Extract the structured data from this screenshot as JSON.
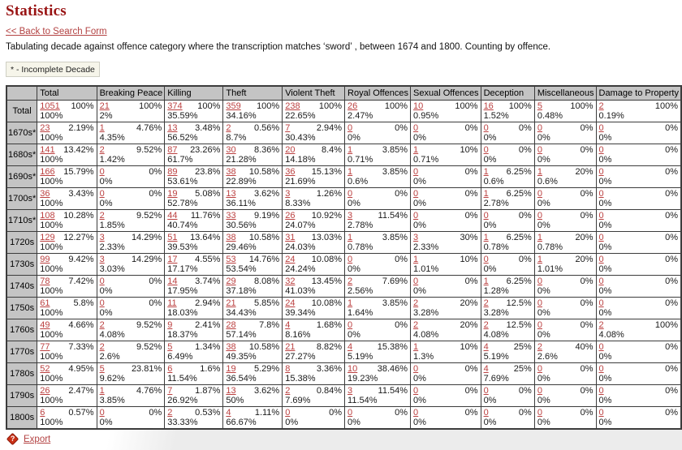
{
  "header": {
    "title": "Statistics",
    "back_link": "<< Back to Search Form",
    "description": "Tabulating decade against offence category where the transcription matches ‘sword’ , between 1674 and 1800. Counting by offence.",
    "incomplete_note": "* - Incomplete Decade"
  },
  "footer": {
    "export_label": "Export",
    "help_icon_glyph": "?"
  },
  "colors": {
    "title_red": "#991414",
    "link_red": "#b34242",
    "count_link_red": "#bb4040",
    "header_gray": "#c4c4c4",
    "note_bg": "#f6f5ea",
    "export_icon_red": "#c93016"
  },
  "table": {
    "cell_structure": [
      "count_link",
      "row_percent",
      "column_percent"
    ],
    "columns": [
      "Total",
      "Breaking Peace",
      "Killing",
      "Theft",
      "Violent Theft",
      "Royal Offences",
      "Sexual Offences",
      "Deception",
      "Miscellaneous",
      "Damage to Property"
    ],
    "rows": [
      {
        "label": "Total",
        "cells": [
          [
            "1051",
            "100%",
            "100%"
          ],
          [
            "21",
            "100%",
            "2%"
          ],
          [
            "374",
            "100%",
            "35.59%"
          ],
          [
            "359",
            "100%",
            "34.16%"
          ],
          [
            "238",
            "100%",
            "22.65%"
          ],
          [
            "26",
            "100%",
            "2.47%"
          ],
          [
            "10",
            "100%",
            "0.95%"
          ],
          [
            "16",
            "100%",
            "1.52%"
          ],
          [
            "5",
            "100%",
            "0.48%"
          ],
          [
            "2",
            "100%",
            "0.19%"
          ]
        ]
      },
      {
        "label": "1670s*",
        "cells": [
          [
            "23",
            "2.19%",
            "100%"
          ],
          [
            "1",
            "4.76%",
            "4.35%"
          ],
          [
            "13",
            "3.48%",
            "56.52%"
          ],
          [
            "2",
            "0.56%",
            "8.7%"
          ],
          [
            "7",
            "2.94%",
            "30.43%"
          ],
          [
            "0",
            "0%",
            "0%"
          ],
          [
            "0",
            "0%",
            "0%"
          ],
          [
            "0",
            "0%",
            "0%"
          ],
          [
            "0",
            "0%",
            "0%"
          ],
          [
            "0",
            "0%",
            "0%"
          ]
        ]
      },
      {
        "label": "1680s*",
        "cells": [
          [
            "141",
            "13.42%",
            "100%"
          ],
          [
            "2",
            "9.52%",
            "1.42%"
          ],
          [
            "87",
            "23.26%",
            "61.7%"
          ],
          [
            "30",
            "8.36%",
            "21.28%"
          ],
          [
            "20",
            "8.4%",
            "14.18%"
          ],
          [
            "1",
            "3.85%",
            "0.71%"
          ],
          [
            "1",
            "10%",
            "0.71%"
          ],
          [
            "0",
            "0%",
            "0%"
          ],
          [
            "0",
            "0%",
            "0%"
          ],
          [
            "0",
            "0%",
            "0%"
          ]
        ]
      },
      {
        "label": "1690s*",
        "cells": [
          [
            "166",
            "15.79%",
            "100%"
          ],
          [
            "0",
            "0%",
            "0%"
          ],
          [
            "89",
            "23.8%",
            "53.61%"
          ],
          [
            "38",
            "10.58%",
            "22.89%"
          ],
          [
            "36",
            "15.13%",
            "21.69%"
          ],
          [
            "1",
            "3.85%",
            "0.6%"
          ],
          [
            "0",
            "0%",
            "0%"
          ],
          [
            "1",
            "6.25%",
            "0.6%"
          ],
          [
            "1",
            "20%",
            "0.6%"
          ],
          [
            "0",
            "0%",
            "0%"
          ]
        ]
      },
      {
        "label": "1700s*",
        "cells": [
          [
            "36",
            "3.43%",
            "100%"
          ],
          [
            "0",
            "0%",
            "0%"
          ],
          [
            "19",
            "5.08%",
            "52.78%"
          ],
          [
            "13",
            "3.62%",
            "36.11%"
          ],
          [
            "3",
            "1.26%",
            "8.33%"
          ],
          [
            "0",
            "0%",
            "0%"
          ],
          [
            "0",
            "0%",
            "0%"
          ],
          [
            "1",
            "6.25%",
            "2.78%"
          ],
          [
            "0",
            "0%",
            "0%"
          ],
          [
            "0",
            "0%",
            "0%"
          ]
        ]
      },
      {
        "label": "1710s*",
        "cells": [
          [
            "108",
            "10.28%",
            "100%"
          ],
          [
            "2",
            "9.52%",
            "1.85%"
          ],
          [
            "44",
            "11.76%",
            "40.74%"
          ],
          [
            "33",
            "9.19%",
            "30.56%"
          ],
          [
            "26",
            "10.92%",
            "24.07%"
          ],
          [
            "3",
            "11.54%",
            "2.78%"
          ],
          [
            "0",
            "0%",
            "0%"
          ],
          [
            "0",
            "0%",
            "0%"
          ],
          [
            "0",
            "0%",
            "0%"
          ],
          [
            "0",
            "0%",
            "0%"
          ]
        ]
      },
      {
        "label": "1720s",
        "cells": [
          [
            "129",
            "12.27%",
            "100%"
          ],
          [
            "3",
            "14.29%",
            "2.33%"
          ],
          [
            "51",
            "13.64%",
            "39.53%"
          ],
          [
            "38",
            "10.58%",
            "29.46%"
          ],
          [
            "31",
            "13.03%",
            "24.03%"
          ],
          [
            "1",
            "3.85%",
            "0.78%"
          ],
          [
            "3",
            "30%",
            "2.33%"
          ],
          [
            "1",
            "6.25%",
            "0.78%"
          ],
          [
            "1",
            "20%",
            "0.78%"
          ],
          [
            "0",
            "0%",
            "0%"
          ]
        ]
      },
      {
        "label": "1730s",
        "cells": [
          [
            "99",
            "9.42%",
            "100%"
          ],
          [
            "3",
            "14.29%",
            "3.03%"
          ],
          [
            "17",
            "4.55%",
            "17.17%"
          ],
          [
            "53",
            "14.76%",
            "53.54%"
          ],
          [
            "24",
            "10.08%",
            "24.24%"
          ],
          [
            "0",
            "0%",
            "0%"
          ],
          [
            "1",
            "10%",
            "1.01%"
          ],
          [
            "0",
            "0%",
            "0%"
          ],
          [
            "1",
            "20%",
            "1.01%"
          ],
          [
            "0",
            "0%",
            "0%"
          ]
        ]
      },
      {
        "label": "1740s",
        "cells": [
          [
            "78",
            "7.42%",
            "100%"
          ],
          [
            "0",
            "0%",
            "0%"
          ],
          [
            "14",
            "3.74%",
            "17.95%"
          ],
          [
            "29",
            "8.08%",
            "37.18%"
          ],
          [
            "32",
            "13.45%",
            "41.03%"
          ],
          [
            "2",
            "7.69%",
            "2.56%"
          ],
          [
            "0",
            "0%",
            "0%"
          ],
          [
            "1",
            "6.25%",
            "1.28%"
          ],
          [
            "0",
            "0%",
            "0%"
          ],
          [
            "0",
            "0%",
            "0%"
          ]
        ]
      },
      {
        "label": "1750s",
        "cells": [
          [
            "61",
            "5.8%",
            "100%"
          ],
          [
            "0",
            "0%",
            "0%"
          ],
          [
            "11",
            "2.94%",
            "18.03%"
          ],
          [
            "21",
            "5.85%",
            "34.43%"
          ],
          [
            "24",
            "10.08%",
            "39.34%"
          ],
          [
            "1",
            "3.85%",
            "1.64%"
          ],
          [
            "2",
            "20%",
            "3.28%"
          ],
          [
            "2",
            "12.5%",
            "3.28%"
          ],
          [
            "0",
            "0%",
            "0%"
          ],
          [
            "0",
            "0%",
            "0%"
          ]
        ]
      },
      {
        "label": "1760s",
        "cells": [
          [
            "49",
            "4.66%",
            "100%"
          ],
          [
            "2",
            "9.52%",
            "4.08%"
          ],
          [
            "9",
            "2.41%",
            "18.37%"
          ],
          [
            "28",
            "7.8%",
            "57.14%"
          ],
          [
            "4",
            "1.68%",
            "8.16%"
          ],
          [
            "0",
            "0%",
            "0%"
          ],
          [
            "2",
            "20%",
            "4.08%"
          ],
          [
            "2",
            "12.5%",
            "4.08%"
          ],
          [
            "0",
            "0%",
            "0%"
          ],
          [
            "2",
            "100%",
            "4.08%"
          ]
        ]
      },
      {
        "label": "1770s",
        "cells": [
          [
            "77",
            "7.33%",
            "100%"
          ],
          [
            "2",
            "9.52%",
            "2.6%"
          ],
          [
            "5",
            "1.34%",
            "6.49%"
          ],
          [
            "38",
            "10.58%",
            "49.35%"
          ],
          [
            "21",
            "8.82%",
            "27.27%"
          ],
          [
            "4",
            "15.38%",
            "5.19%"
          ],
          [
            "1",
            "10%",
            "1.3%"
          ],
          [
            "4",
            "25%",
            "5.19%"
          ],
          [
            "2",
            "40%",
            "2.6%"
          ],
          [
            "0",
            "0%",
            "0%"
          ]
        ]
      },
      {
        "label": "1780s",
        "cells": [
          [
            "52",
            "4.95%",
            "100%"
          ],
          [
            "5",
            "23.81%",
            "9.62%"
          ],
          [
            "6",
            "1.6%",
            "11.54%"
          ],
          [
            "19",
            "5.29%",
            "36.54%"
          ],
          [
            "8",
            "3.36%",
            "15.38%"
          ],
          [
            "10",
            "38.46%",
            "19.23%"
          ],
          [
            "0",
            "0%",
            "0%"
          ],
          [
            "4",
            "25%",
            "7.69%"
          ],
          [
            "0",
            "0%",
            "0%"
          ],
          [
            "0",
            "0%",
            "0%"
          ]
        ]
      },
      {
        "label": "1790s",
        "cells": [
          [
            "26",
            "2.47%",
            "100%"
          ],
          [
            "1",
            "4.76%",
            "3.85%"
          ],
          [
            "7",
            "1.87%",
            "26.92%"
          ],
          [
            "13",
            "3.62%",
            "50%"
          ],
          [
            "2",
            "0.84%",
            "7.69%"
          ],
          [
            "3",
            "11.54%",
            "11.54%"
          ],
          [
            "0",
            "0%",
            "0%"
          ],
          [
            "0",
            "0%",
            "0%"
          ],
          [
            "0",
            "0%",
            "0%"
          ],
          [
            "0",
            "0%",
            "0%"
          ]
        ]
      },
      {
        "label": "1800s",
        "cells": [
          [
            "6",
            "0.57%",
            "100%"
          ],
          [
            "0",
            "0%",
            "0%"
          ],
          [
            "2",
            "0.53%",
            "33.33%"
          ],
          [
            "4",
            "1.11%",
            "66.67%"
          ],
          [
            "0",
            "0%",
            "0%"
          ],
          [
            "0",
            "0%",
            "0%"
          ],
          [
            "0",
            "0%",
            "0%"
          ],
          [
            "0",
            "0%",
            "0%"
          ],
          [
            "0",
            "0%",
            "0%"
          ],
          [
            "0",
            "0%",
            "0%"
          ]
        ]
      }
    ]
  }
}
